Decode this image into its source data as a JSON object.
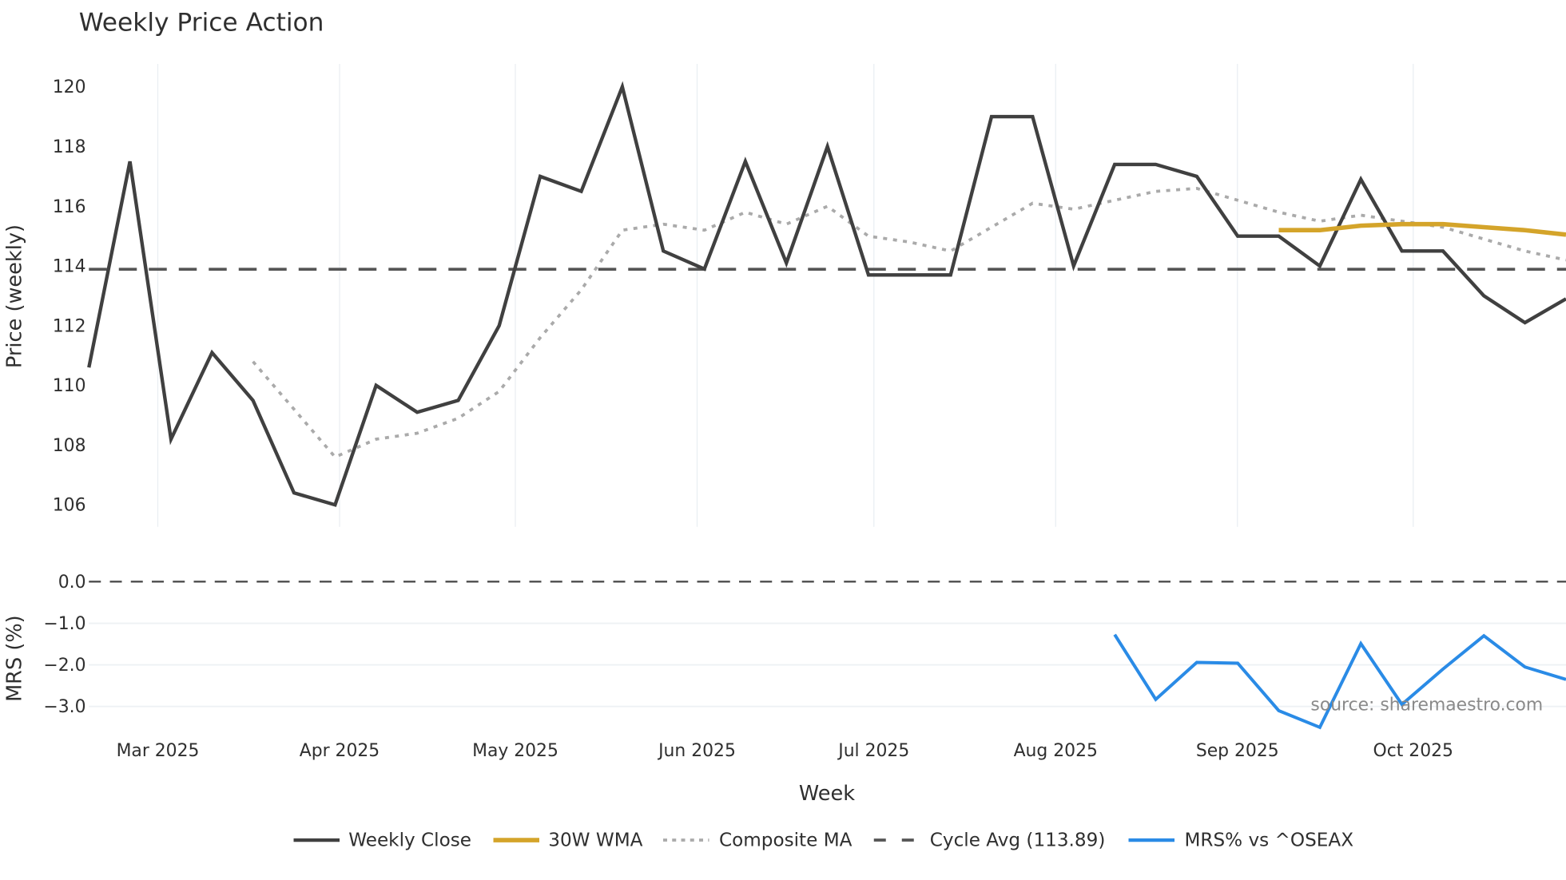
{
  "title": "Weekly Price Action",
  "colors": {
    "weekly_close": "#404040",
    "wma": "#D4A42A",
    "composite_ma": "#AAAAAA",
    "cycle_avg": "#555555",
    "mrs": "#2A8BE6",
    "grid": "#E9EEF2"
  },
  "axes": {
    "top_ylabel": "Price (weekly)",
    "bottom_ylabel": "MRS (%)",
    "xlabel": "Week",
    "top_yticks": [
      "120",
      "118",
      "116",
      "114",
      "112",
      "110",
      "108",
      "106"
    ],
    "bottom_yticks": [
      "0.0",
      "−1.0",
      "−2.0",
      "−3.0"
    ],
    "xticks": [
      "Mar 2025",
      "Apr 2025",
      "May 2025",
      "Jun 2025",
      "Jul 2025",
      "Aug 2025",
      "Sep 2025",
      "Oct 2025"
    ]
  },
  "source": "source: sharemaestro.com",
  "legend": [
    {
      "label": "Weekly Close"
    },
    {
      "label": "30W WMA"
    },
    {
      "label": "Composite MA"
    },
    {
      "label": "Cycle Avg (113.89)"
    },
    {
      "label": "MRS% vs ^OSEAX"
    }
  ],
  "chart_data": [
    {
      "type": "line",
      "title": "Weekly Price Action",
      "xlabel": "Week",
      "ylabel": "Price (weekly)",
      "ylim": [
        105.3,
        120.8
      ],
      "grid": true,
      "legend_position": "bottom",
      "x_tick_labels": [
        "Mar 2025",
        "Apr 2025",
        "May 2025",
        "Jun 2025",
        "Jul 2025",
        "Aug 2025",
        "Sep 2025",
        "Oct 2025"
      ],
      "x_week_index": [
        0,
        1,
        2,
        3,
        4,
        5,
        6,
        7,
        8,
        9,
        10,
        11,
        12,
        13,
        14,
        15,
        16,
        17,
        18,
        19,
        20,
        21,
        22,
        23,
        24,
        25,
        26,
        27,
        28,
        29,
        30,
        31,
        32,
        33,
        34,
        35,
        36
      ],
      "series": [
        {
          "name": "Weekly Close",
          "values": [
            110.6,
            117.5,
            108.2,
            111.1,
            109.5,
            106.4,
            106.0,
            110.0,
            109.1,
            109.5,
            112.0,
            117.0,
            116.5,
            120.0,
            114.5,
            113.9,
            117.5,
            114.1,
            118.0,
            113.7,
            113.7,
            113.7,
            119.0,
            119.0,
            114.0,
            117.4,
            117.4,
            117.0,
            115.0,
            115.0,
            114.0,
            116.9,
            114.5,
            114.5,
            113.0,
            112.1,
            112.9
          ]
        },
        {
          "name": "30W WMA",
          "values": [
            null,
            null,
            null,
            null,
            null,
            null,
            null,
            null,
            null,
            null,
            null,
            null,
            null,
            null,
            null,
            null,
            null,
            null,
            null,
            null,
            null,
            null,
            null,
            null,
            null,
            null,
            null,
            null,
            null,
            115.2,
            115.2,
            115.35,
            115.4,
            115.4,
            115.3,
            115.2,
            115.05
          ]
        },
        {
          "name": "Composite MA",
          "values": [
            null,
            null,
            null,
            null,
            110.8,
            109.2,
            107.6,
            108.2,
            108.4,
            108.9,
            109.8,
            111.6,
            113.2,
            115.2,
            115.4,
            115.2,
            115.8,
            115.4,
            116.0,
            115.0,
            114.8,
            114.5,
            115.3,
            116.1,
            115.9,
            116.2,
            116.5,
            116.6,
            116.2,
            115.8,
            115.5,
            115.7,
            115.5,
            115.3,
            114.9,
            114.5,
            114.2
          ]
        },
        {
          "name": "Cycle Avg (113.89)",
          "values": [
            113.89
          ]
        }
      ]
    },
    {
      "type": "line",
      "ylabel": "MRS (%)",
      "ylim": [
        -3.6,
        0.2
      ],
      "grid": true,
      "series": [
        {
          "name": "MRS% vs ^OSEAX",
          "values": [
            null,
            null,
            null,
            null,
            null,
            null,
            null,
            null,
            null,
            null,
            null,
            null,
            null,
            null,
            null,
            null,
            null,
            null,
            null,
            null,
            null,
            null,
            null,
            null,
            null,
            -1.27,
            -2.83,
            -1.94,
            -1.96,
            -3.1,
            -3.5,
            -1.49,
            -2.95,
            -2.1,
            -1.3,
            -2.05,
            -2.35
          ]
        },
        {
          "name": "Zero line",
          "values": [
            0.0
          ]
        }
      ]
    }
  ]
}
